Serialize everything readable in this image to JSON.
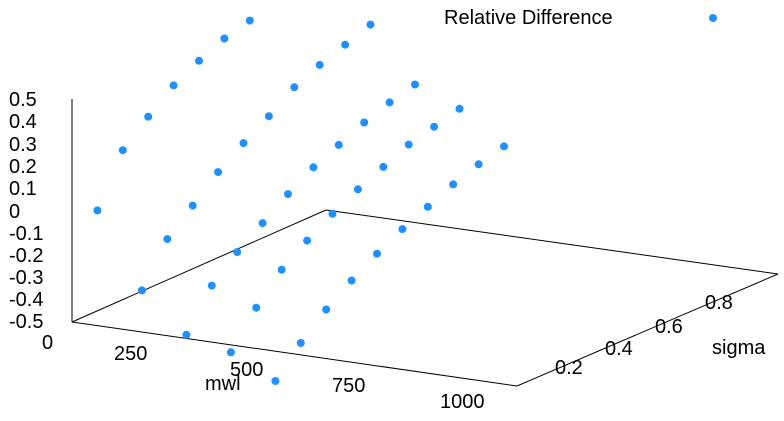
{
  "chart_data": {
    "type": "scatter",
    "dimension": "3d",
    "title": "",
    "xlabel": "mwl",
    "ylabel": "sigma",
    "zlabel": "",
    "xlim": [
      0,
      1000
    ],
    "ylim": [
      0,
      1
    ],
    "zlim": [
      -0.5,
      0.5
    ],
    "xticks": [
      "0",
      "250",
      "500",
      "750",
      "1000"
    ],
    "yticks": [
      "0.2",
      "0.4",
      "0.6",
      "0.8"
    ],
    "zticks": [
      "0.5",
      "0.4",
      "0.3",
      "0.2",
      "0.1",
      "0",
      "-0.1",
      "-0.2",
      "-0.3",
      "-0.4",
      "-0.5"
    ],
    "legend": {
      "position": "top-right",
      "entries": [
        "Relative Difference"
      ]
    },
    "grid": false,
    "series": [
      {
        "name": "Relative Difference",
        "color": "#1e90ff",
        "marker": "circle",
        "points": [
          {
            "x": 0,
            "y": 0.1,
            "z": -0.05
          },
          {
            "x": 0,
            "y": 0.2,
            "z": 0.17
          },
          {
            "x": 0,
            "y": 0.3,
            "z": 0.27
          },
          {
            "x": 0,
            "y": 0.4,
            "z": 0.36
          },
          {
            "x": 0,
            "y": 0.5,
            "z": 0.42
          },
          {
            "x": 0,
            "y": 0.6,
            "z": 0.47
          },
          {
            "x": 0,
            "y": 0.7,
            "z": 0.5
          },
          {
            "x": 0,
            "y": 0.8,
            "z": 0.58
          },
          {
            "x": 0,
            "y": 0.9,
            "z": 0.65
          },
          {
            "x": 0,
            "y": 1.0,
            "z": 1.0
          },
          {
            "x": 100,
            "y": 0.1,
            "z": -0.38
          },
          {
            "x": 100,
            "y": 0.2,
            "z": -0.2
          },
          {
            "x": 100,
            "y": 0.3,
            "z": -0.1
          },
          {
            "x": 100,
            "y": 0.4,
            "z": 0.0
          },
          {
            "x": 100,
            "y": 0.5,
            "z": 0.08
          },
          {
            "x": 100,
            "y": 0.6,
            "z": 0.15
          },
          {
            "x": 100,
            "y": 0.7,
            "z": 0.23
          },
          {
            "x": 100,
            "y": 0.8,
            "z": 0.28
          },
          {
            "x": 100,
            "y": 0.9,
            "z": 0.32
          },
          {
            "x": 100,
            "y": 1.0,
            "z": 0.36
          },
          {
            "x": 200,
            "y": 0.1,
            "z": -0.55
          },
          {
            "x": 200,
            "y": 0.2,
            "z": -0.38
          },
          {
            "x": 200,
            "y": 0.3,
            "z": -0.28
          },
          {
            "x": 200,
            "y": 0.4,
            "z": -0.2
          },
          {
            "x": 200,
            "y": 0.5,
            "z": -0.12
          },
          {
            "x": 200,
            "y": 0.6,
            "z": -0.05
          },
          {
            "x": 200,
            "y": 0.7,
            "z": 0.0
          },
          {
            "x": 200,
            "y": 0.8,
            "z": 0.05
          },
          {
            "x": 200,
            "y": 0.9,
            "z": 0.09
          },
          {
            "x": 200,
            "y": 1.0,
            "z": 0.12
          },
          {
            "x": 300,
            "y": 0.1,
            "z": -0.6
          },
          {
            "x": 300,
            "y": 0.2,
            "z": -0.45
          },
          {
            "x": 300,
            "y": 0.3,
            "z": -0.33
          },
          {
            "x": 300,
            "y": 0.4,
            "z": -0.25
          },
          {
            "x": 300,
            "y": 0.5,
            "z": -0.18
          },
          {
            "x": 300,
            "y": 0.6,
            "z": -0.12
          },
          {
            "x": 300,
            "y": 0.7,
            "z": -0.07
          },
          {
            "x": 300,
            "y": 0.8,
            "z": -0.02
          },
          {
            "x": 300,
            "y": 0.9,
            "z": 0.01
          },
          {
            "x": 300,
            "y": 1.0,
            "z": 0.04
          },
          {
            "x": 400,
            "y": 0.1,
            "z": -0.7
          },
          {
            "x": 400,
            "y": 0.2,
            "z": -0.58
          },
          {
            "x": 400,
            "y": 0.3,
            "z": -0.48
          },
          {
            "x": 400,
            "y": 0.4,
            "z": -0.4
          },
          {
            "x": 400,
            "y": 0.5,
            "z": -0.33
          },
          {
            "x": 400,
            "y": 0.6,
            "z": -0.27
          },
          {
            "x": 400,
            "y": 0.7,
            "z": -0.22
          },
          {
            "x": 400,
            "y": 0.8,
            "z": -0.17
          },
          {
            "x": 400,
            "y": 0.9,
            "z": -0.13
          },
          {
            "x": 400,
            "y": 1.0,
            "z": -0.1
          }
        ]
      }
    ]
  }
}
